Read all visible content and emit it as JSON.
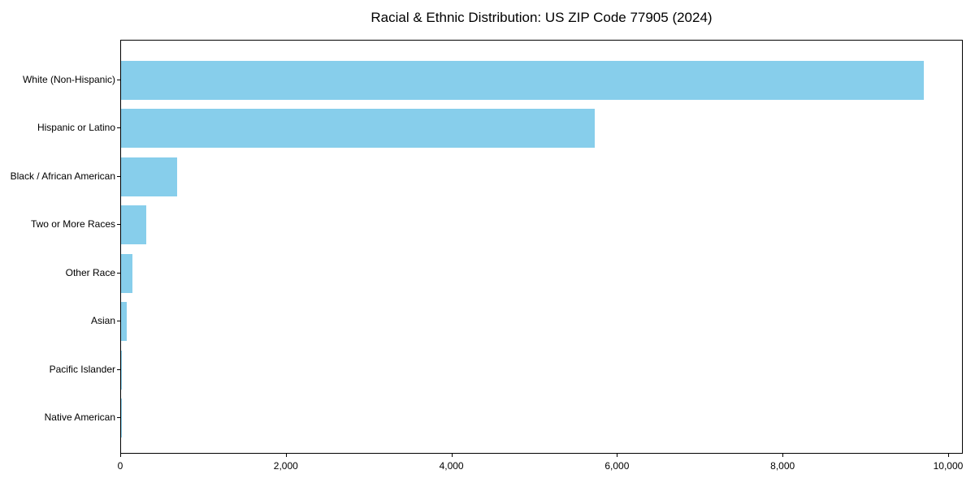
{
  "title": "Racial & Ethnic Distribution: US ZIP Code 77905 (2024)",
  "colors": {
    "bar": "#87CEEB",
    "axis": "#000000",
    "text": "#000000",
    "background": "#FFFFFF"
  },
  "chart_data": {
    "type": "bar",
    "orientation": "horizontal",
    "title": "Racial & Ethnic Distribution: US ZIP Code 77905 (2024)",
    "categories": [
      "White (Non-Hispanic)",
      "Hispanic or Latino",
      "Black / African American",
      "Two or More Races",
      "Other Race",
      "Asian",
      "Pacific Islander",
      "Native American"
    ],
    "values": [
      9700,
      5720,
      675,
      300,
      135,
      70,
      10,
      2
    ],
    "xlabel": "",
    "ylabel": "",
    "xlim": [
      0,
      10177
    ],
    "x_ticks": [
      0,
      2000,
      4000,
      6000,
      8000,
      10000
    ],
    "x_tick_labels": [
      "0",
      "2,000",
      "4,000",
      "6,000",
      "8,000",
      "10,000"
    ],
    "bar_color": "#87CEEB",
    "grid": false,
    "legend": null
  }
}
